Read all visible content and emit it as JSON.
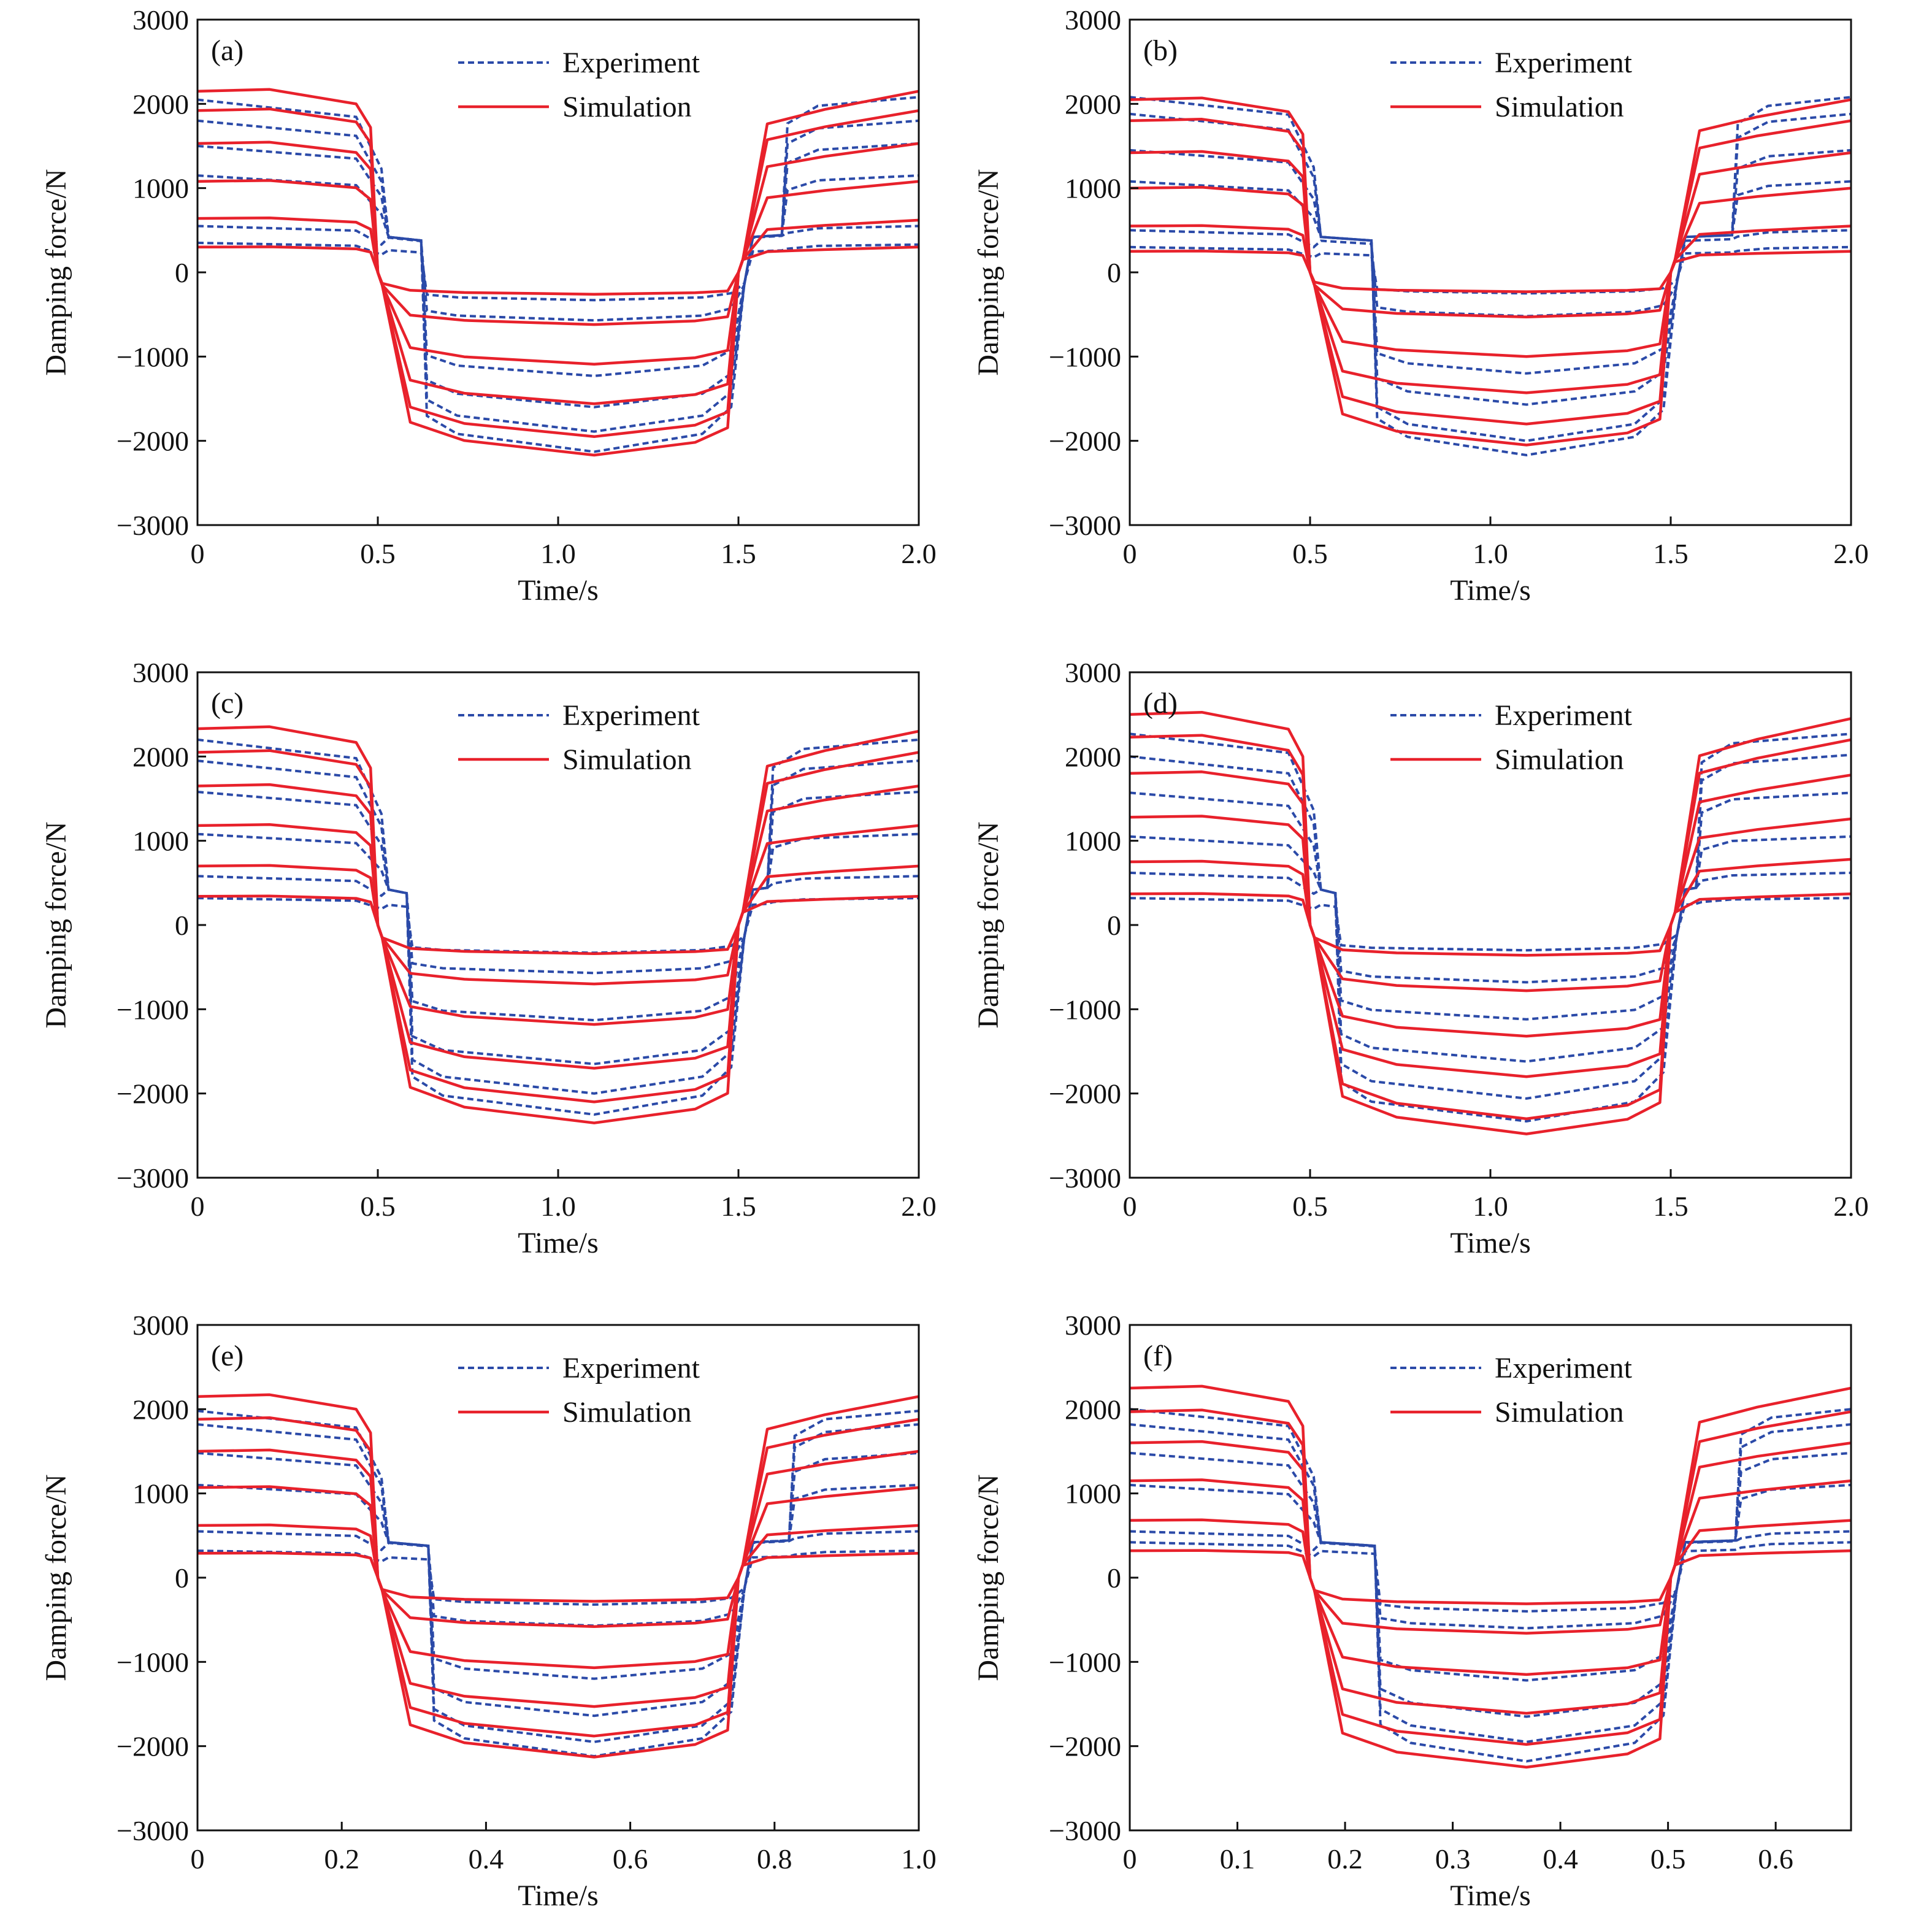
{
  "colors": {
    "experiment": "#2b4aa8",
    "simulation": "#e8212b",
    "axis": "#111111"
  },
  "chart_data": [
    {
      "type": "line",
      "panel_label": "(a)",
      "xlabel": "Time/s",
      "ylabel": "Damping force/N",
      "xlim": [
        0,
        2.0
      ],
      "ylim": [
        -3000,
        3000
      ],
      "xticks": [
        "0",
        "0.5",
        "1.0",
        "1.5",
        "2.0"
      ],
      "xtick_values": [
        0,
        0.5,
        1.0,
        1.5,
        2.0
      ],
      "yticks": [
        "3000",
        "2000",
        "1000",
        "0",
        "−1000",
        "−2000",
        "−3000"
      ],
      "legend": [
        "Experiment",
        "Simulation"
      ],
      "legend_position": "top-right",
      "exp_delay": 0.12,
      "simulation": [
        [
          2150,
          -2170,
          2150
        ],
        [
          1920,
          -1950,
          1920
        ],
        [
          1530,
          -1560,
          1530
        ],
        [
          1080,
          -1090,
          1080
        ],
        [
          640,
          -620,
          620
        ],
        [
          300,
          -260,
          300
        ]
      ],
      "experiment": [
        [
          2050,
          -2130,
          2080
        ],
        [
          1800,
          -1890,
          1800
        ],
        [
          1500,
          -1600,
          1530
        ],
        [
          1150,
          -1230,
          1150
        ],
        [
          550,
          -570,
          550
        ],
        [
          350,
          -330,
          330
        ]
      ]
    },
    {
      "type": "line",
      "panel_label": "(b)",
      "xlabel": "Time/s",
      "ylabel": "Damping force/N",
      "xlim": [
        0,
        2.0
      ],
      "ylim": [
        -3000,
        3000
      ],
      "xticks": [
        "0",
        "0.5",
        "1.0",
        "1.5",
        "2.0"
      ],
      "xtick_values": [
        0,
        0.5,
        1.0,
        1.5,
        2.0
      ],
      "yticks": [
        "3000",
        "2000",
        "1000",
        "0",
        "−1000",
        "−2000",
        "−3000"
      ],
      "legend": [
        "Experiment",
        "Simulation"
      ],
      "legend_position": "top-right",
      "exp_delay": 0.17,
      "simulation": [
        [
          2050,
          -2050,
          2050
        ],
        [
          1800,
          -1800,
          1800
        ],
        [
          1420,
          -1430,
          1420
        ],
        [
          1000,
          -1000,
          1000
        ],
        [
          550,
          -530,
          550
        ],
        [
          250,
          -230,
          250
        ]
      ],
      "experiment": [
        [
          2080,
          -2170,
          2080
        ],
        [
          1880,
          -2000,
          1880
        ],
        [
          1450,
          -1570,
          1450
        ],
        [
          1080,
          -1200,
          1080
        ],
        [
          500,
          -520,
          500
        ],
        [
          300,
          -250,
          300
        ]
      ]
    },
    {
      "type": "line",
      "panel_label": "(c)",
      "xlabel": "Time/s",
      "ylabel": "Damping force/N",
      "xlim": [
        0,
        2.0
      ],
      "ylim": [
        -3000,
        3000
      ],
      "xticks": [
        "0",
        "0.5",
        "1.0",
        "1.5",
        "2.0"
      ],
      "xtick_values": [
        0,
        0.5,
        1.0,
        1.5,
        2.0
      ],
      "yticks": [
        "3000",
        "2000",
        "1000",
        "0",
        "−1000",
        "−2000",
        "−3000"
      ],
      "legend": [
        "Experiment",
        "Simulation"
      ],
      "legend_position": "top-right",
      "exp_delay": 0.08,
      "simulation": [
        [
          2330,
          -2350,
          2300
        ],
        [
          2050,
          -2100,
          2050
        ],
        [
          1650,
          -1700,
          1650
        ],
        [
          1180,
          -1180,
          1180
        ],
        [
          700,
          -700,
          700
        ],
        [
          340,
          -340,
          340
        ]
      ],
      "experiment": [
        [
          2200,
          -2250,
          2200
        ],
        [
          1950,
          -2000,
          1950
        ],
        [
          1580,
          -1650,
          1580
        ],
        [
          1080,
          -1130,
          1080
        ],
        [
          580,
          -570,
          580
        ],
        [
          320,
          -330,
          320
        ]
      ]
    },
    {
      "type": "line",
      "panel_label": "(d)",
      "xlabel": "Time/s",
      "ylabel": "Damping force/N",
      "xlim": [
        0,
        2.0
      ],
      "ylim": [
        -3000,
        3000
      ],
      "xticks": [
        "0",
        "0.5",
        "1.0",
        "1.5",
        "2.0"
      ],
      "xtick_values": [
        0,
        0.5,
        1.0,
        1.5,
        2.0
      ],
      "yticks": [
        "3000",
        "2000",
        "1000",
        "0",
        "−1000",
        "−2000",
        "−3000"
      ],
      "legend": [
        "Experiment",
        "Simulation"
      ],
      "legend_position": "top-right",
      "exp_delay": 0.07,
      "simulation": [
        [
          2500,
          -2480,
          2450
        ],
        [
          2230,
          -2300,
          2200
        ],
        [
          1800,
          -1800,
          1780
        ],
        [
          1280,
          -1320,
          1260
        ],
        [
          750,
          -780,
          780
        ],
        [
          370,
          -360,
          370
        ]
      ],
      "experiment": [
        [
          2270,
          -2330,
          2270
        ],
        [
          2000,
          -2060,
          2020
        ],
        [
          1570,
          -1620,
          1570
        ],
        [
          1050,
          -1120,
          1050
        ],
        [
          620,
          -680,
          620
        ],
        [
          320,
          -300,
          320
        ]
      ]
    },
    {
      "type": "line",
      "panel_label": "(e)",
      "xlabel": "Time/s",
      "ylabel": "Damping force/N",
      "xlim": [
        0,
        1.0
      ],
      "ylim": [
        -3000,
        3000
      ],
      "xticks": [
        "0",
        "0.2",
        "0.4",
        "0.6",
        "0.8",
        "1.0"
      ],
      "xtick_values": [
        0,
        0.2,
        0.4,
        0.6,
        0.8,
        1.0
      ],
      "yticks": [
        "3000",
        "2000",
        "1000",
        "0",
        "−1000",
        "−2000",
        "−3000"
      ],
      "legend": [
        "Experiment",
        "Simulation"
      ],
      "legend_position": "top-right",
      "exp_delay": 0.07,
      "simulation": [
        [
          2150,
          -2130,
          2150
        ],
        [
          1880,
          -1880,
          1880
        ],
        [
          1500,
          -1530,
          1500
        ],
        [
          1070,
          -1070,
          1070
        ],
        [
          620,
          -580,
          620
        ],
        [
          290,
          -280,
          290
        ]
      ],
      "experiment": [
        [
          1980,
          -2120,
          1980
        ],
        [
          1820,
          -1950,
          1820
        ],
        [
          1480,
          -1640,
          1480
        ],
        [
          1100,
          -1200,
          1100
        ],
        [
          550,
          -570,
          550
        ],
        [
          320,
          -320,
          320
        ]
      ]
    },
    {
      "type": "line",
      "panel_label": "(f)",
      "xlabel": "Time/s",
      "ylabel": "Damping force/N",
      "xlim": [
        0,
        0.67
      ],
      "ylim": [
        -3000,
        3000
      ],
      "xticks": [
        "0",
        "0.1",
        "0.2",
        "0.3",
        "0.4",
        "0.5",
        "0.6"
      ],
      "xtick_values": [
        0,
        0.1,
        0.2,
        0.3,
        0.4,
        0.5,
        0.6
      ],
      "yticks": [
        "3000",
        "2000",
        "1000",
        "0",
        "−1000",
        "−2000",
        "−3000"
      ],
      "legend": [
        "Experiment",
        "Simulation"
      ],
      "legend_position": "top-right",
      "exp_delay": 0.06,
      "simulation": [
        [
          2250,
          -2250,
          2250
        ],
        [
          1970,
          -1980,
          1970
        ],
        [
          1600,
          -1610,
          1600
        ],
        [
          1150,
          -1150,
          1150
        ],
        [
          680,
          -660,
          680
        ],
        [
          320,
          -310,
          320
        ]
      ],
      "experiment": [
        [
          2000,
          -2180,
          2000
        ],
        [
          1820,
          -1950,
          1820
        ],
        [
          1480,
          -1650,
          1480
        ],
        [
          1100,
          -1220,
          1100
        ],
        [
          550,
          -600,
          550
        ],
        [
          420,
          -400,
          420
        ]
      ]
    }
  ]
}
